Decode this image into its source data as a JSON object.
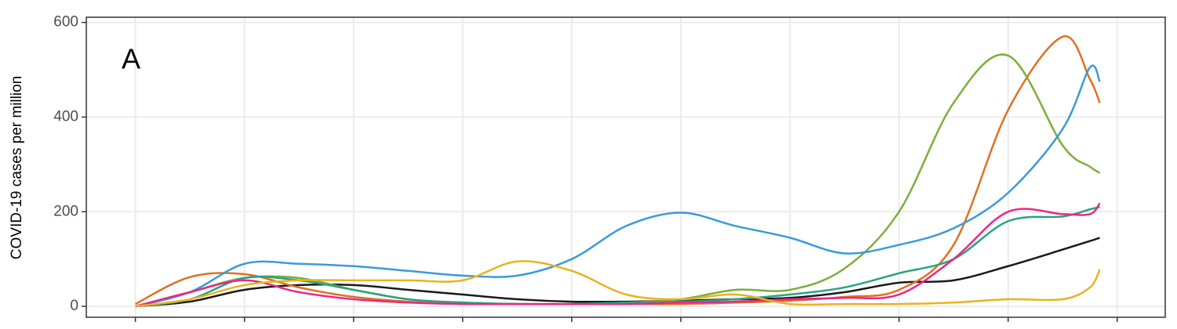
{
  "chart_data": {
    "type": "line",
    "ylabel": "COVID-19 cases per million",
    "annotations": [
      "A"
    ],
    "x": [
      0,
      0.5,
      1,
      1.5,
      2,
      2.5,
      3,
      3.5,
      4,
      4.5,
      5,
      5.5,
      6,
      6.5,
      7,
      7.5,
      8,
      8.5,
      8.75,
      8.84
    ],
    "series": [
      {
        "color": "#1a1a1a",
        "values": [
          0,
          10,
          35,
          45,
          45,
          35,
          25,
          15,
          10,
          10,
          12,
          15,
          18,
          30,
          50,
          55,
          85,
          120,
          138,
          145
        ]
      },
      {
        "color": "#e07020",
        "values": [
          5,
          62,
          68,
          40,
          20,
          10,
          5,
          5,
          5,
          5,
          5,
          8,
          12,
          20,
          35,
          130,
          415,
          570,
          480,
          430
        ]
      },
      {
        "color": "#7cae3a",
        "values": [
          0,
          30,
          60,
          60,
          35,
          15,
          8,
          5,
          5,
          8,
          15,
          35,
          35,
          80,
          200,
          430,
          530,
          340,
          295,
          282
        ]
      },
      {
        "color": "#3b9ad8",
        "values": [
          0,
          30,
          90,
          90,
          85,
          75,
          65,
          65,
          100,
          170,
          198,
          170,
          145,
          112,
          130,
          165,
          240,
          375,
          505,
          475
        ]
      },
      {
        "color": "#2aa283",
        "values": [
          0,
          15,
          60,
          55,
          35,
          15,
          8,
          5,
          5,
          8,
          10,
          15,
          25,
          40,
          70,
          100,
          180,
          190,
          205,
          210
        ]
      },
      {
        "color": "#e7298a",
        "values": [
          0,
          30,
          55,
          30,
          15,
          8,
          5,
          5,
          5,
          5,
          8,
          10,
          15,
          18,
          25,
          100,
          200,
          195,
          195,
          218
        ]
      },
      {
        "color": "#e8b31e",
        "values": [
          0,
          15,
          45,
          55,
          55,
          55,
          55,
          95,
          75,
          25,
          15,
          25,
          5,
          5,
          5,
          8,
          15,
          15,
          40,
          78
        ]
      }
    ],
    "xlim": [
      -0.45,
      9.44
    ],
    "xticks": [
      0,
      1,
      2,
      3,
      4,
      5,
      6,
      7,
      8,
      9
    ],
    "ylim": [
      -23,
      611
    ],
    "yticks": [
      0,
      200,
      400,
      600
    ],
    "grid": true
  }
}
